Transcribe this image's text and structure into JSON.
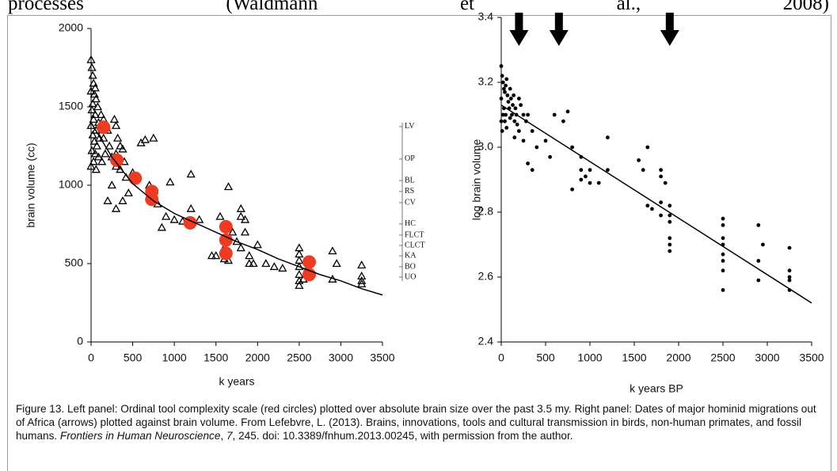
{
  "header_words": [
    "processes",
    "(Waldmann",
    "et",
    "al.,",
    "2008)"
  ],
  "chart_data": [
    {
      "type": "scatter",
      "xlabel": "k years",
      "ylabel": "brain volume (cc)",
      "xlim": [
        0,
        3500
      ],
      "ylim": [
        0,
        2000
      ],
      "xticks": [
        0,
        500,
        1000,
        1500,
        2000,
        2500,
        3000,
        3500
      ],
      "yticks": [
        0,
        500,
        1000,
        1500,
        2000
      ],
      "y2lim": [
        0,
        2000
      ],
      "y2ticks": [
        {
          "value": 1374,
          "label": "LV"
        },
        {
          "value": 1167,
          "label": "OP"
        },
        {
          "value": 1030,
          "label": "BL"
        },
        {
          "value": 960,
          "label": "RS"
        },
        {
          "value": 889,
          "label": "CV"
        },
        {
          "value": 753,
          "label": "HC"
        },
        {
          "value": 682,
          "label": "FLCT"
        },
        {
          "value": 616,
          "label": "CLCT"
        },
        {
          "value": 550,
          "label": "KA"
        },
        {
          "value": 480,
          "label": "BO"
        },
        {
          "value": 414,
          "label": "UO"
        }
      ],
      "series": [
        {
          "marker": "triangle",
          "color": "#000000",
          "x": [
            0,
            10,
            20,
            30,
            50,
            0,
            40,
            60,
            20,
            80,
            10,
            50,
            30,
            90,
            0,
            60,
            20,
            100,
            40,
            70,
            10,
            50,
            90,
            30,
            0,
            60,
            120,
            150,
            180,
            200,
            150,
            220,
            170,
            250,
            130,
            280,
            300,
            320,
            350,
            300,
            380,
            400,
            300,
            350,
            420,
            250,
            200,
            300,
            380,
            450,
            500,
            600,
            700,
            650,
            750,
            800,
            850,
            900,
            950,
            1000,
            1100,
            1200,
            1200,
            1300,
            1450,
            1500,
            1550,
            1600,
            1600,
            1650,
            1650,
            1700,
            1750,
            1800,
            1800,
            1800,
            1850,
            1850,
            1900,
            1900,
            1950,
            2000,
            2100,
            2200,
            2300,
            2500,
            2500,
            2500,
            2500,
            2500,
            2500,
            2500,
            2550,
            2600,
            2900,
            2900,
            2950,
            3250,
            3250,
            3250,
            3250
          ],
          "values": [
            1800,
            1750,
            1700,
            1650,
            1620,
            1600,
            1580,
            1550,
            1520,
            1500,
            1480,
            1450,
            1420,
            1400,
            1380,
            1350,
            1320,
            1300,
            1280,
            1250,
            1220,
            1200,
            1180,
            1150,
            1120,
            1100,
            1450,
            1420,
            1380,
            1350,
            1300,
            1250,
            1200,
            1180,
            1150,
            1420,
            1380,
            1300,
            1250,
            1200,
            1230,
            1150,
            1120,
            1100,
            1050,
            1000,
            900,
            850,
            900,
            950,
            1080,
            1270,
            1000,
            1290,
            1300,
            880,
            730,
            800,
            1020,
            780,
            770,
            1070,
            850,
            780,
            550,
            550,
            800,
            600,
            530,
            990,
            520,
            700,
            640,
            850,
            800,
            600,
            780,
            700,
            500,
            550,
            500,
            620,
            500,
            480,
            470,
            600,
            560,
            520,
            480,
            430,
            390,
            360,
            400,
            470,
            580,
            400,
            500,
            490,
            420,
            390,
            370
          ]
        },
        {
          "marker": "circle",
          "color": "#ee3b22",
          "x": [
            150,
            310,
            530,
            730,
            730,
            1190,
            1620,
            1620,
            1620,
            2620,
            2620
          ],
          "values": [
            1370,
            1160,
            1045,
            960,
            910,
            760,
            735,
            650,
            565,
            510,
            430
          ]
        },
        {
          "marker": "line",
          "color": "#000000",
          "x": [
            0,
            250,
            500,
            750,
            1000,
            1250,
            1500,
            1750,
            2000,
            2250,
            2500,
            2750,
            3000,
            3250,
            3500
          ],
          "values": [
            1400,
            1180,
            1010,
            900,
            820,
            760,
            700,
            640,
            590,
            530,
            480,
            430,
            390,
            340,
            300
          ]
        }
      ]
    },
    {
      "type": "scatter",
      "xlabel": "k years BP",
      "ylabel": "log brain volume",
      "xlim": [
        0,
        3500
      ],
      "ylim": [
        2.4,
        3.4
      ],
      "xticks": [
        0,
        500,
        1000,
        1500,
        2000,
        2500,
        3000,
        3500
      ],
      "yticks": [
        2.4,
        2.6,
        2.8,
        {
          "value": 3,
          "label": "3.0"
        },
        3.2,
        3.4
      ],
      "arrows": [
        200,
        650,
        1900
      ],
      "series": [
        {
          "marker": "dot",
          "color": "#000000",
          "x": [
            0,
            10,
            20,
            30,
            0,
            40,
            50,
            60,
            70,
            80,
            90,
            100,
            110,
            120,
            130,
            140,
            150,
            160,
            170,
            180,
            200,
            20,
            40,
            60,
            10,
            30,
            220,
            250,
            280,
            0,
            50,
            100,
            150,
            200,
            300,
            350,
            400,
            300,
            350,
            250,
            500,
            550,
            600,
            700,
            750,
            800,
            800,
            900,
            900,
            900,
            950,
            1000,
            1000,
            1100,
            1200,
            1200,
            1550,
            1600,
            1650,
            1650,
            1700,
            1800,
            1800,
            1800,
            1800,
            1850,
            1900,
            1900,
            1900,
            1900,
            1900,
            1900,
            2500,
            2500,
            2500,
            2500,
            2500,
            2500,
            2500,
            2500,
            2900,
            2950,
            2900,
            2900,
            3250,
            3250,
            3250,
            3250,
            3250
          ],
          "values": [
            3.25,
            3.22,
            3.2,
            3.18,
            3.15,
            3.17,
            3.19,
            3.21,
            3.16,
            3.14,
            3.12,
            3.18,
            3.15,
            3.1,
            3.13,
            3.16,
            3.08,
            3.12,
            3.1,
            3.07,
            3.05,
            3.1,
            3.08,
            3.06,
            3.05,
            3.12,
            3.13,
            3.1,
            3.08,
            3.08,
            3.1,
            3.09,
            3.03,
            3.15,
            3.1,
            3.05,
            3.0,
            2.95,
            2.93,
            3.02,
            3.02,
            2.97,
            3.1,
            3.08,
            3.11,
            3.0,
            2.87,
            2.97,
            2.93,
            2.9,
            2.91,
            2.93,
            2.89,
            2.89,
            3.03,
            2.93,
            2.96,
            2.93,
            3.0,
            2.82,
            2.81,
            2.93,
            2.91,
            2.83,
            2.79,
            2.89,
            2.82,
            2.79,
            2.77,
            2.72,
            2.7,
            2.68,
            2.78,
            2.76,
            2.72,
            2.7,
            2.67,
            2.65,
            2.62,
            2.56,
            2.76,
            2.7,
            2.65,
            2.59,
            2.69,
            2.62,
            2.6,
            2.59,
            2.56
          ]
        },
        {
          "marker": "line",
          "color": "#000000",
          "x": [
            0,
            3500
          ],
          "values": [
            3.13,
            2.52
          ]
        }
      ]
    }
  ],
  "caption": [
    "Figure 13. Left panel: Ordinal tool complexity scale (red circles) plotted over absolute brain size over the past 3.5 my. Right panel: Dates of major hominid migrations out of Africa (arrows) plotted against brain volume. From Lefebvre, L. (2013). Brains, innovations, tools and cultural transmission in birds, non-human primates, and fossil humans. ",
    "Frontiers in Human Neuroscience",
    ", ",
    "7",
    ", 245. doi: 10.3389/fnhum.2013.00245, with permission from the author."
  ]
}
